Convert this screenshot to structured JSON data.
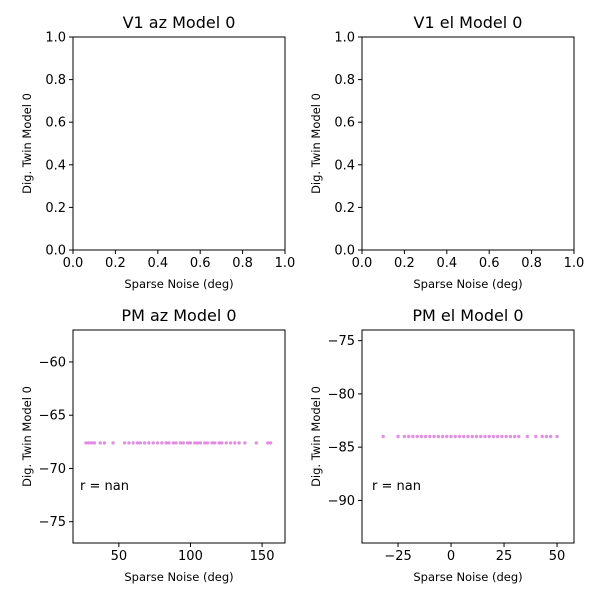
{
  "chart_data": [
    {
      "type": "scatter",
      "title": "V1 az Model 0",
      "xlabel": "Sparse Noise (deg)",
      "ylabel": "Dig. Twin Model 0",
      "xlim": [
        0,
        1
      ],
      "ylim": [
        0,
        1
      ],
      "xticks": [
        0.0,
        0.2,
        0.4,
        0.6,
        0.8,
        1.0
      ],
      "yticks": [
        0.0,
        0.2,
        0.4,
        0.6,
        0.8,
        1.0
      ],
      "xticklabels": [
        "0.0",
        "0.2",
        "0.4",
        "0.6",
        "0.8",
        "1.0"
      ],
      "yticklabels": [
        "0.0",
        "0.2",
        "0.4",
        "0.6",
        "0.8",
        "1.0"
      ],
      "points": [],
      "annotation": ""
    },
    {
      "type": "scatter",
      "title": "V1 el Model 0",
      "xlabel": "Sparse Noise (deg)",
      "ylabel": "Dig. Twin Model 0",
      "xlim": [
        0,
        1
      ],
      "ylim": [
        0,
        1
      ],
      "xticks": [
        0.0,
        0.2,
        0.4,
        0.6,
        0.8,
        1.0
      ],
      "yticks": [
        0.0,
        0.2,
        0.4,
        0.6,
        0.8,
        1.0
      ],
      "xticklabels": [
        "0.0",
        "0.2",
        "0.4",
        "0.6",
        "0.8",
        "1.0"
      ],
      "yticklabels": [
        "0.0",
        "0.2",
        "0.4",
        "0.6",
        "0.8",
        "1.0"
      ],
      "points": [],
      "annotation": ""
    },
    {
      "type": "scatter",
      "title": "PM az Model 0",
      "xlabel": "Sparse Noise (deg)",
      "ylabel": "Dig. Twin Model 0",
      "xlim": [
        18,
        166
      ],
      "ylim": [
        -77,
        -57
      ],
      "xticks": [
        50,
        100,
        150
      ],
      "yticks": [
        -60,
        -65,
        -70,
        -75
      ],
      "xticklabels": [
        "50",
        "100",
        "150"
      ],
      "yticklabels": [
        "−60",
        "−65",
        "−70",
        "−75"
      ],
      "point_color": "#cc33cc",
      "points": [
        [
          27,
          -67.6
        ],
        [
          29,
          -67.6
        ],
        [
          31,
          -67.6
        ],
        [
          33,
          -67.6
        ],
        [
          37,
          -67.6
        ],
        [
          40,
          -67.6
        ],
        [
          46,
          -67.6
        ],
        [
          54,
          -67.6
        ],
        [
          57,
          -67.6
        ],
        [
          60,
          -67.6
        ],
        [
          63,
          -67.6
        ],
        [
          65,
          -67.6
        ],
        [
          68,
          -67.6
        ],
        [
          71,
          -67.6
        ],
        [
          74,
          -67.6
        ],
        [
          77,
          -67.6
        ],
        [
          80,
          -67.6
        ],
        [
          83,
          -67.6
        ],
        [
          85,
          -67.6
        ],
        [
          88,
          -67.6
        ],
        [
          90,
          -67.6
        ],
        [
          93,
          -67.6
        ],
        [
          95,
          -67.6
        ],
        [
          98,
          -67.6
        ],
        [
          100,
          -67.6
        ],
        [
          103,
          -67.6
        ],
        [
          105,
          -67.6
        ],
        [
          107,
          -67.6
        ],
        [
          110,
          -67.6
        ],
        [
          112,
          -67.6
        ],
        [
          115,
          -67.6
        ],
        [
          117,
          -67.6
        ],
        [
          120,
          -67.6
        ],
        [
          122,
          -67.6
        ],
        [
          125,
          -67.6
        ],
        [
          128,
          -67.6
        ],
        [
          131,
          -67.6
        ],
        [
          134,
          -67.6
        ],
        [
          138,
          -67.6
        ],
        [
          146,
          -67.6
        ],
        [
          154,
          -67.6
        ],
        [
          156,
          -67.6
        ]
      ],
      "annotation": "r = nan"
    },
    {
      "type": "scatter",
      "title": "PM el Model 0",
      "xlabel": "Sparse Noise (deg)",
      "ylabel": "Dig. Twin Model 0",
      "xlim": [
        -42,
        58
      ],
      "ylim": [
        -94,
        -74
      ],
      "xticks": [
        -25,
        0,
        25,
        50
      ],
      "yticks": [
        -75,
        -80,
        -85,
        -90
      ],
      "xticklabels": [
        "−25",
        "0",
        "25",
        "50"
      ],
      "yticklabels": [
        "−75",
        "−80",
        "−85",
        "−90"
      ],
      "point_color": "#cc33cc",
      "points": [
        [
          -32,
          -84
        ],
        [
          -25,
          -84
        ],
        [
          -22,
          -84
        ],
        [
          -20,
          -84
        ],
        [
          -18,
          -84
        ],
        [
          -16,
          -84
        ],
        [
          -14,
          -84
        ],
        [
          -12,
          -84
        ],
        [
          -10,
          -84
        ],
        [
          -8,
          -84
        ],
        [
          -6,
          -84
        ],
        [
          -4,
          -84
        ],
        [
          -2,
          -84
        ],
        [
          0,
          -84
        ],
        [
          2,
          -84
        ],
        [
          4,
          -84
        ],
        [
          6,
          -84
        ],
        [
          8,
          -84
        ],
        [
          10,
          -84
        ],
        [
          12,
          -84
        ],
        [
          14,
          -84
        ],
        [
          16,
          -84
        ],
        [
          18,
          -84
        ],
        [
          20,
          -84
        ],
        [
          22,
          -84
        ],
        [
          24,
          -84
        ],
        [
          26,
          -84
        ],
        [
          28,
          -84
        ],
        [
          30,
          -84
        ],
        [
          32,
          -84
        ],
        [
          36,
          -84
        ],
        [
          40,
          -84
        ],
        [
          43,
          -84
        ],
        [
          45,
          -84
        ],
        [
          47,
          -84
        ],
        [
          50,
          -84
        ]
      ],
      "annotation": "r = nan"
    }
  ]
}
